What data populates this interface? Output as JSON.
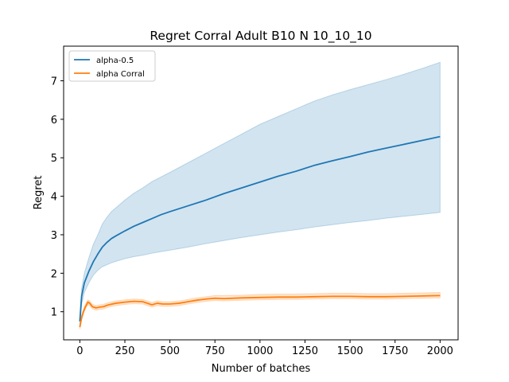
{
  "chart_data": {
    "type": "line",
    "title": "Regret Corral Adult B10 N 10_10_10",
    "xlabel": "Number of batches",
    "ylabel": "Regret",
    "xlim": [
      -90,
      2100
    ],
    "ylim": [
      0.27,
      7.9
    ],
    "x_ticks": [
      0,
      250,
      500,
      750,
      1000,
      1250,
      1500,
      1750,
      2000
    ],
    "x_tick_labels": [
      "0",
      "250",
      "500",
      "750",
      "1000",
      "1250",
      "1500",
      "1750",
      "2000"
    ],
    "y_ticks": [
      1,
      2,
      3,
      4,
      5,
      6,
      7
    ],
    "y_tick_labels": [
      "1",
      "2",
      "3",
      "4",
      "5",
      "6",
      "7"
    ],
    "grid": false,
    "legend_position": "top-left",
    "series": [
      {
        "name": "alpha-0.5",
        "color": "#1f77b4",
        "band_color": "#1f77b4",
        "x": [
          0,
          10,
          25,
          50,
          75,
          100,
          125,
          150,
          175,
          200,
          250,
          300,
          350,
          400,
          450,
          500,
          600,
          700,
          800,
          900,
          1000,
          1100,
          1200,
          1300,
          1400,
          1500,
          1600,
          1700,
          1800,
          1900,
          2000
        ],
        "y": [
          0.75,
          1.4,
          1.75,
          2.05,
          2.3,
          2.5,
          2.68,
          2.8,
          2.9,
          2.97,
          3.1,
          3.22,
          3.32,
          3.42,
          3.52,
          3.6,
          3.75,
          3.9,
          4.07,
          4.22,
          4.37,
          4.52,
          4.65,
          4.8,
          4.92,
          5.03,
          5.15,
          5.25,
          5.35,
          5.45,
          5.55
        ],
        "lower": [
          0.65,
          1.2,
          1.5,
          1.75,
          1.95,
          2.08,
          2.17,
          2.22,
          2.27,
          2.31,
          2.38,
          2.43,
          2.47,
          2.52,
          2.56,
          2.6,
          2.68,
          2.77,
          2.85,
          2.93,
          3.0,
          3.07,
          3.13,
          3.2,
          3.26,
          3.32,
          3.37,
          3.43,
          3.48,
          3.53,
          3.58
        ],
        "upper": [
          0.85,
          1.6,
          2.0,
          2.4,
          2.75,
          3.0,
          3.28,
          3.45,
          3.6,
          3.7,
          3.9,
          4.08,
          4.22,
          4.38,
          4.5,
          4.62,
          4.87,
          5.12,
          5.37,
          5.62,
          5.87,
          6.07,
          6.27,
          6.47,
          6.63,
          6.77,
          6.9,
          7.03,
          7.17,
          7.32,
          7.48
        ]
      },
      {
        "name": "alpha Corral",
        "color": "#ff7f0e",
        "band_color": "#ff7f0e",
        "x": [
          0,
          10,
          20,
          30,
          45,
          55,
          70,
          90,
          110,
          130,
          160,
          200,
          250,
          300,
          350,
          400,
          430,
          460,
          500,
          550,
          600,
          650,
          700,
          750,
          800,
          900,
          1000,
          1100,
          1200,
          1300,
          1400,
          1500,
          1600,
          1700,
          1800,
          1900,
          2000
        ],
        "y": [
          0.6,
          0.85,
          1.0,
          1.12,
          1.25,
          1.22,
          1.13,
          1.1,
          1.12,
          1.13,
          1.18,
          1.22,
          1.25,
          1.27,
          1.26,
          1.18,
          1.22,
          1.2,
          1.2,
          1.22,
          1.26,
          1.3,
          1.33,
          1.35,
          1.34,
          1.36,
          1.37,
          1.38,
          1.38,
          1.39,
          1.4,
          1.4,
          1.39,
          1.39,
          1.4,
          1.41,
          1.42
        ],
        "lower": [
          0.55,
          0.78,
          0.94,
          1.06,
          1.19,
          1.16,
          1.07,
          1.04,
          1.06,
          1.07,
          1.12,
          1.16,
          1.19,
          1.21,
          1.2,
          1.12,
          1.16,
          1.14,
          1.14,
          1.16,
          1.2,
          1.24,
          1.27,
          1.29,
          1.28,
          1.3,
          1.31,
          1.32,
          1.32,
          1.33,
          1.34,
          1.34,
          1.33,
          1.33,
          1.34,
          1.35,
          1.36
        ],
        "upper": [
          0.65,
          0.92,
          1.06,
          1.18,
          1.31,
          1.28,
          1.19,
          1.16,
          1.18,
          1.19,
          1.24,
          1.28,
          1.31,
          1.33,
          1.32,
          1.24,
          1.28,
          1.26,
          1.26,
          1.28,
          1.32,
          1.36,
          1.39,
          1.42,
          1.42,
          1.43,
          1.45,
          1.46,
          1.46,
          1.47,
          1.48,
          1.48,
          1.47,
          1.47,
          1.48,
          1.49,
          1.5
        ]
      }
    ]
  }
}
